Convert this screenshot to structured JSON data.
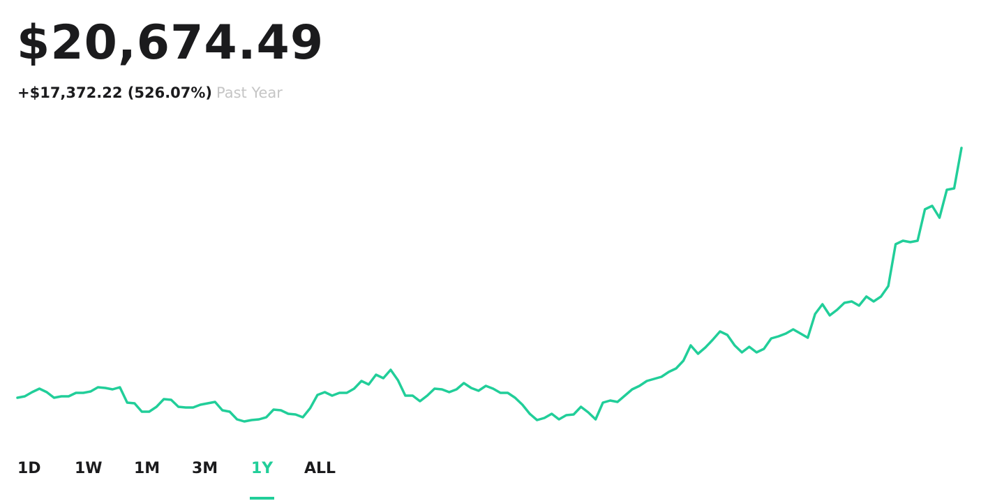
{
  "header": {
    "value": "$20,674.49",
    "change": "+$17,372.22 (526.07%)",
    "period": "Past Year"
  },
  "chart": {
    "type": "line",
    "color": "#21ce99",
    "values": [
      3300,
      3397,
      3688,
      3931,
      3688,
      3300,
      3397,
      3397,
      3640,
      3640,
      3737,
      4028,
      3979,
      3882,
      4028,
      2960,
      2912,
      2329,
      2329,
      2669,
      3203,
      3154,
      2669,
      2621,
      2621,
      2815,
      2912,
      3009,
      2427,
      2329,
      1796,
      1650,
      1747,
      1796,
      1941,
      2475,
      2427,
      2184,
      2135,
      1941,
      2572,
      3494,
      3688,
      3446,
      3640,
      3640,
      3931,
      4465,
      4222,
      4902,
      4659,
      5241,
      4513,
      3446,
      3446,
      3057,
      3446,
      3931,
      3882,
      3688,
      3882,
      4319,
      3979,
      3785,
      4125,
      3931,
      3640,
      3640,
      3300,
      2815,
      2184,
      1747,
      1893,
      2184,
      1796,
      2087,
      2135,
      2669,
      2281,
      1796,
      2960,
      3106,
      3009,
      3446,
      3882,
      4125,
      4465,
      4610,
      4756,
      5096,
      5338,
      5872,
      6940,
      6357,
      6794,
      7328,
      7910,
      7668,
      6940,
      6454,
      6843,
      6454,
      6697,
      7425,
      7571,
      7765,
      8056,
      7765,
      7474,
      9124,
      9803,
      9027,
      9415,
      9900,
      9997,
      9706,
      10337,
      9997,
      10337,
      11065,
      13977,
      14219,
      14122,
      14219,
      16403,
      16646,
      15821,
      17762,
      17859,
      20674.49
    ]
  },
  "tabs": {
    "items": [
      "1D",
      "1W",
      "1M",
      "3M",
      "1Y",
      "ALL"
    ],
    "active": 4
  }
}
